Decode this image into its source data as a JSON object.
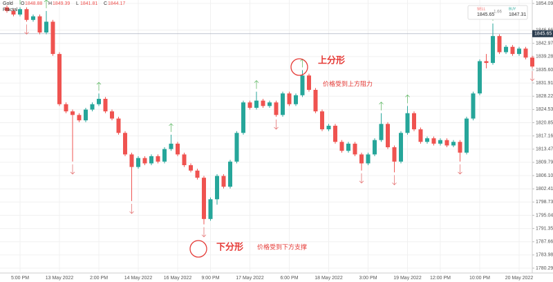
{
  "chart_data": {
    "type": "candlestick",
    "symbol": "Gold",
    "indicator": "Fractal",
    "ohlc_legend": [
      {
        "label": "O",
        "value": 1848.88
      },
      {
        "label": "H",
        "value": 1849.39
      },
      {
        "label": "L",
        "value": 1841.81
      },
      {
        "label": "C",
        "value": 1844.17
      }
    ],
    "sell": {
      "label": "SELL",
      "value": 1845.65
    },
    "spread": 1.66,
    "buy": {
      "label": "BUY",
      "value": 1847.31
    },
    "last_price": 1845.65,
    "up_color": "#26a69a",
    "down_color": "#ef5350",
    "fractal_up_color": "#66bb6a",
    "fractal_down_color": "#e57373",
    "ylim": [
      1778.94,
      1855.05
    ],
    "yticks": [
      1854.09,
      1846.66,
      1842.97,
      1839.28,
      {
        "value": 1835.6,
        "label": "1835.60"
      },
      1831.91,
      1828.22,
      1824.53,
      1820.85,
      1817.16,
      1813.47,
      1809.79,
      {
        "value": 1806.1,
        "label": "1806.10"
      },
      1802.41,
      1798.73,
      1795.04,
      1791.35,
      1787.66,
      1783.98,
      1780.29
    ],
    "grid": true,
    "categories": [
      null,
      null,
      "5:00 PM",
      null,
      null,
      null,
      null,
      null,
      "13 May 2022",
      null,
      null,
      null,
      null,
      null,
      "2:00 PM",
      null,
      null,
      null,
      null,
      null,
      "14 May 2022",
      null,
      null,
      null,
      null,
      null,
      "16 May 2022",
      null,
      null,
      null,
      null,
      "9:00 PM",
      null,
      null,
      null,
      null,
      null,
      "17 May 2022",
      null,
      null,
      null,
      null,
      null,
      "6:00 PM",
      null,
      null,
      null,
      null,
      null,
      "18 May 2022",
      null,
      null,
      null,
      null,
      null,
      "3:00 PM",
      null,
      null,
      null,
      null,
      null,
      "19 May 2022",
      null,
      null,
      null,
      null,
      "12:00 PM",
      null,
      null,
      null,
      null,
      null,
      "10:00 PM",
      null,
      null,
      null,
      null,
      null,
      "20 May 2022",
      null,
      null
    ],
    "open": [
      1853.0,
      1852.0,
      1851.0,
      1852.5,
      1849.5,
      1850.5,
      1846.0,
      1849.0,
      1840.0,
      1826.0,
      1824.0,
      1823.0,
      1821.5,
      1824.5,
      1826.0,
      1827.5,
      1824.0,
      1822.0,
      1818.0,
      1812.0,
      1808.5,
      1811.0,
      1809.5,
      1811.5,
      1810.0,
      1813.5,
      1815.0,
      1812.0,
      1809.0,
      1807.5,
      1805.5,
      1794.0,
      1799.5,
      1806.0,
      1803.0,
      1810.0,
      1818.0,
      1826.5,
      1825.0,
      1827.0,
      1825.5,
      1826.5,
      1823.0,
      1829.0,
      1826.0,
      1828.5,
      1834.0,
      1830.0,
      1824.0,
      1819.0,
      1820.0,
      1815.5,
      1813.0,
      1815.0,
      1812.0,
      1809.5,
      1812.0,
      1816.0,
      1820.5,
      1814.0,
      1810.0,
      1818.0,
      1823.5,
      1819.0,
      1815.5,
      1816.5,
      1815.0,
      1816.0,
      1814.5,
      1815.5,
      1812.5,
      1822.0,
      1829.0,
      1838.0,
      1837.5,
      1845.0,
      1840.5,
      1842.0,
      1840.0,
      1841.5,
      1839.0
    ],
    "high": [
      1853.5,
      1852.5,
      1853.0,
      1853.0,
      1851.0,
      1851.0,
      1852.0,
      1849.5,
      1840.5,
      1826.5,
      1824.5,
      1823.5,
      1825.0,
      1826.5,
      1829.0,
      1828.0,
      1824.5,
      1822.5,
      1818.5,
      1812.5,
      1811.5,
      1811.5,
      1812.0,
      1812.0,
      1814.0,
      1817.5,
      1815.5,
      1812.5,
      1809.5,
      1808.0,
      1806.0,
      1800.0,
      1806.5,
      1806.5,
      1810.5,
      1818.5,
      1827.0,
      1827.0,
      1829.5,
      1827.5,
      1827.0,
      1827.0,
      1829.5,
      1829.5,
      1829.0,
      1835.5,
      1834.5,
      1830.5,
      1824.5,
      1820.5,
      1820.5,
      1816.0,
      1815.5,
      1815.5,
      1812.5,
      1812.5,
      1816.5,
      1823.5,
      1821.0,
      1814.5,
      1818.5,
      1825.5,
      1824.0,
      1819.5,
      1817.0,
      1817.0,
      1816.5,
      1816.5,
      1816.0,
      1816.0,
      1822.5,
      1829.5,
      1838.5,
      1840.0,
      1848.5,
      1845.5,
      1842.5,
      1842.5,
      1842.0,
      1842.0,
      1839.5
    ],
    "low": [
      1851.5,
      1850.5,
      1850.5,
      1849.0,
      1849.0,
      1845.5,
      1845.5,
      1839.5,
      1825.5,
      1823.5,
      1810.0,
      1821.0,
      1821.0,
      1824.0,
      1825.5,
      1823.5,
      1821.5,
      1817.5,
      1811.5,
      1799.0,
      1808.0,
      1809.0,
      1809.0,
      1809.5,
      1809.5,
      1813.0,
      1811.5,
      1808.5,
      1807.0,
      1805.0,
      1792.5,
      1793.5,
      1798.0,
      1802.5,
      1802.5,
      1809.5,
      1817.5,
      1824.5,
      1824.5,
      1825.0,
      1825.0,
      1822.5,
      1822.5,
      1825.5,
      1825.5,
      1828.0,
      1829.5,
      1823.5,
      1818.5,
      1818.5,
      1815.0,
      1812.5,
      1812.5,
      1811.5,
      1807.5,
      1809.0,
      1811.5,
      1815.5,
      1813.5,
      1807.0,
      1809.5,
      1817.5,
      1818.5,
      1815.0,
      1815.0,
      1814.5,
      1814.5,
      1814.0,
      1814.0,
      1810.0,
      1812.0,
      1821.5,
      1828.5,
      1836.0,
      1837.0,
      1840.0,
      1840.0,
      1839.5,
      1839.5,
      1838.5,
      1836.0
    ],
    "close": [
      1852.0,
      1851.0,
      1852.5,
      1849.5,
      1850.5,
      1846.0,
      1849.0,
      1840.0,
      1826.0,
      1824.0,
      1823.0,
      1821.5,
      1824.5,
      1826.0,
      1827.5,
      1824.0,
      1822.0,
      1818.0,
      1812.0,
      1808.5,
      1811.0,
      1809.5,
      1811.5,
      1810.0,
      1813.5,
      1815.0,
      1812.0,
      1809.0,
      1807.5,
      1805.5,
      1794.0,
      1799.5,
      1806.0,
      1803.0,
      1810.0,
      1818.0,
      1826.5,
      1825.0,
      1827.0,
      1825.5,
      1826.5,
      1823.0,
      1829.0,
      1826.0,
      1828.5,
      1834.0,
      1830.0,
      1824.0,
      1819.0,
      1820.0,
      1815.5,
      1813.0,
      1815.0,
      1812.0,
      1809.5,
      1812.0,
      1816.0,
      1820.5,
      1814.0,
      1810.0,
      1818.0,
      1823.5,
      1819.0,
      1815.5,
      1816.5,
      1815.0,
      1816.0,
      1814.5,
      1815.5,
      1812.5,
      1822.0,
      1829.0,
      1838.0,
      1837.5,
      1845.0,
      1840.5,
      1842.0,
      1840.0,
      1841.5,
      1839.0,
      1836.5
    ],
    "fractal_up": [
      null,
      null,
      1853.0,
      null,
      null,
      null,
      1852.0,
      null,
      null,
      null,
      null,
      null,
      null,
      null,
      1829.0,
      null,
      null,
      null,
      null,
      null,
      null,
      null,
      null,
      null,
      null,
      1817.5,
      null,
      null,
      null,
      null,
      null,
      null,
      null,
      null,
      null,
      null,
      null,
      null,
      1829.5,
      null,
      null,
      null,
      null,
      null,
      null,
      1835.5,
      null,
      null,
      null,
      null,
      null,
      null,
      null,
      null,
      null,
      null,
      null,
      1823.5,
      null,
      null,
      null,
      1825.5,
      null,
      null,
      null,
      null,
      null,
      null,
      null,
      null,
      null,
      null,
      null,
      null,
      1848.5,
      null,
      null,
      null,
      null,
      null,
      null
    ],
    "fractal_down": [
      null,
      null,
      null,
      1849.0,
      null,
      null,
      null,
      null,
      null,
      null,
      1810.0,
      null,
      null,
      null,
      null,
      null,
      null,
      null,
      null,
      1799.0,
      null,
      null,
      null,
      null,
      null,
      null,
      null,
      null,
      null,
      null,
      1792.5,
      null,
      null,
      null,
      null,
      null,
      null,
      null,
      null,
      null,
      null,
      1822.5,
      null,
      null,
      null,
      null,
      null,
      null,
      null,
      null,
      null,
      null,
      null,
      null,
      1807.5,
      null,
      null,
      null,
      null,
      1807.0,
      null,
      null,
      null,
      null,
      null,
      null,
      null,
      null,
      null,
      1810.0,
      null,
      null,
      null,
      null,
      null,
      null,
      null,
      null,
      null,
      null,
      1836.0
    ],
    "annotations": [
      {
        "title": "上分形",
        "text": "价格受到上方阻力"
      },
      {
        "title": "下分形",
        "text": "价格受到下方支撑"
      }
    ]
  }
}
